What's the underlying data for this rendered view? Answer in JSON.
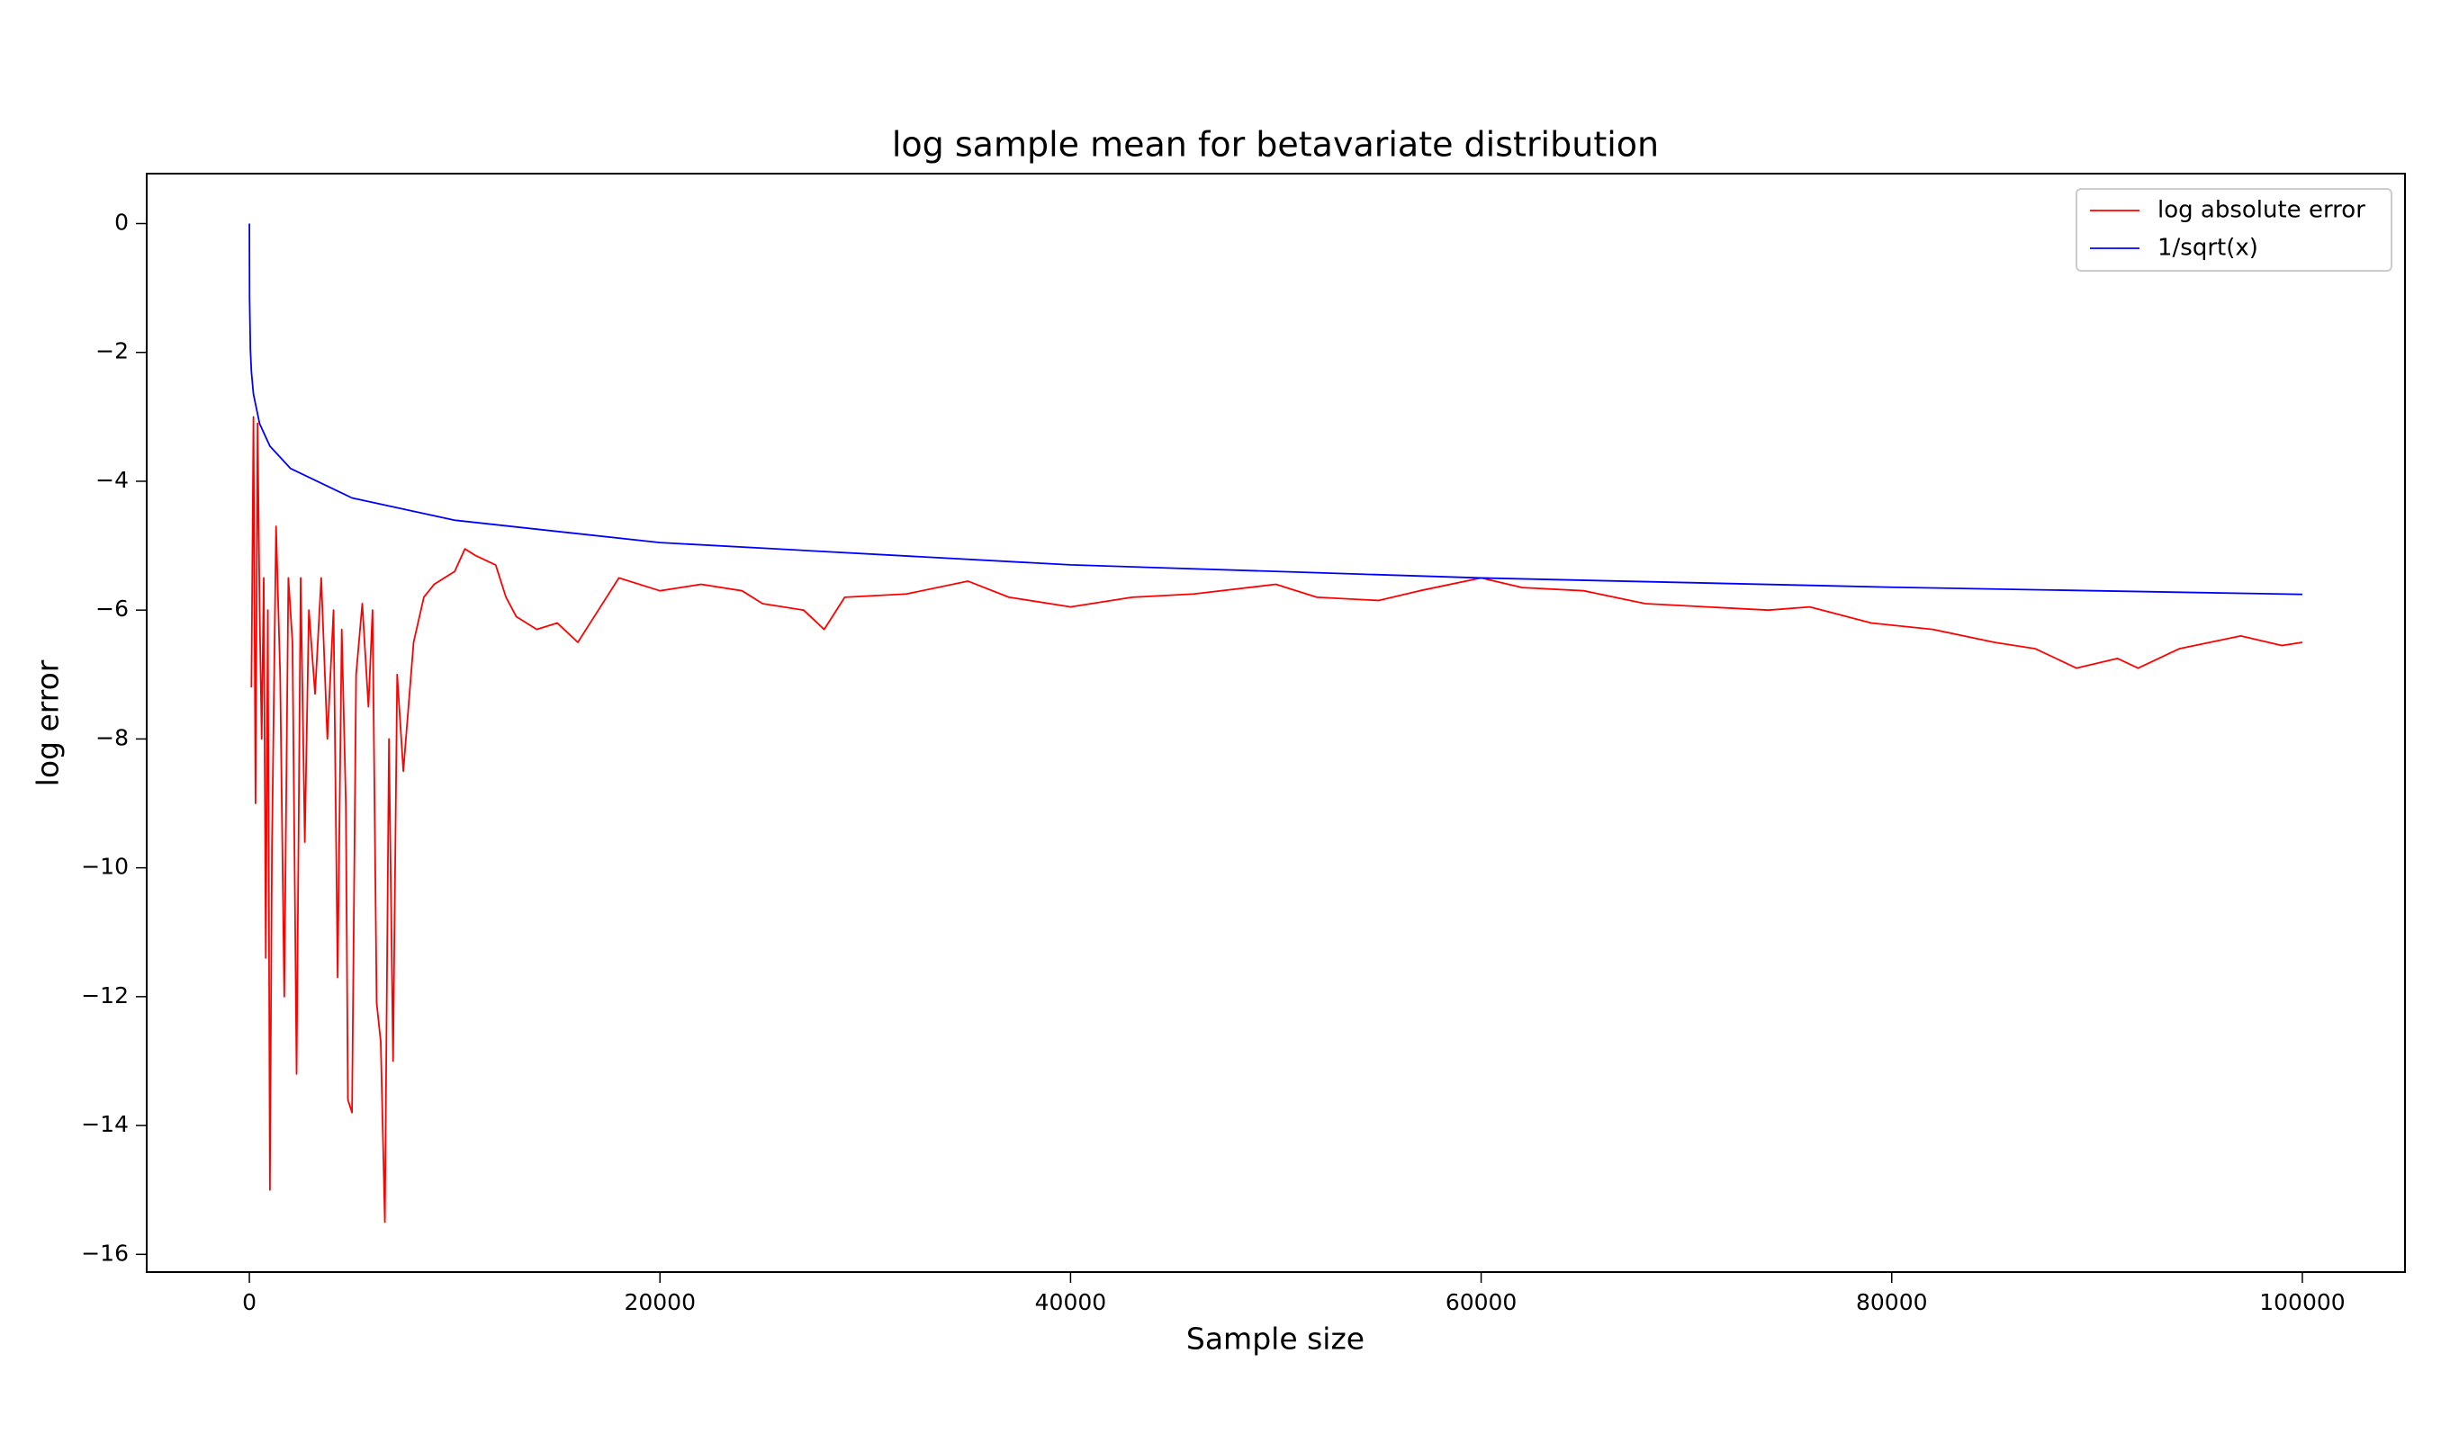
{
  "chart_data": {
    "type": "line",
    "title": "log sample mean for betavariate distribution",
    "x_label": "Sample size",
    "y_label": "log error",
    "xlim": [
      -5000,
      105000
    ],
    "ylim": [
      -16.275,
      0.775
    ],
    "xticks": [
      0,
      20000,
      40000,
      60000,
      80000,
      100000
    ],
    "yticks": [
      0,
      {
        "value": -2,
        "label": "−2"
      },
      {
        "value": -4,
        "label": "−4"
      },
      {
        "value": -6,
        "label": "−6"
      },
      {
        "value": -8,
        "label": "−8"
      },
      {
        "value": -10,
        "label": "−10"
      },
      {
        "value": -12,
        "label": "−12"
      },
      {
        "value": -14,
        "label": "−14"
      },
      {
        "value": -16,
        "label": "−16"
      }
    ],
    "grid": false,
    "legend": "upper right",
    "series": [
      {
        "name": "log absolute error",
        "color": "#ff0000",
        "x": [
          100,
          200,
          300,
          400,
          500,
          600,
          700,
          800,
          900,
          1000,
          1100,
          1300,
          1500,
          1700,
          1900,
          2100,
          2300,
          2500,
          2700,
          2900,
          3200,
          3500,
          3800,
          4100,
          4300,
          4500,
          4700,
          4800,
          5000,
          5200,
          5500,
          5800,
          6000,
          6200,
          6400,
          6600,
          6800,
          7000,
          7200,
          7500,
          8000,
          8500,
          9000,
          10000,
          10500,
          11000,
          12000,
          12500,
          13000,
          14000,
          15000,
          16000,
          17000,
          18000,
          20000,
          22000,
          24000,
          25000,
          27000,
          28000,
          29000,
          32000,
          35000,
          37000,
          40000,
          43000,
          46000,
          50000,
          52000,
          55000,
          57000,
          60000,
          62000,
          65000,
          68000,
          71000,
          74000,
          76000,
          79000,
          82000,
          85000,
          87000,
          89000,
          91000,
          92000,
          94000,
          97000,
          99000,
          100000
        ],
        "values": [
          -7.2,
          -3.0,
          -9.0,
          -3.1,
          -6,
          -8,
          -5.5,
          -11.4,
          -6,
          -15,
          -9.7,
          -4.7,
          -7,
          -12,
          -5.5,
          -6.5,
          -13.2,
          -5.5,
          -9.6,
          -6,
          -7.3,
          -5.5,
          -8,
          -6,
          -11.7,
          -6.3,
          -9,
          -13.6,
          -13.8,
          -7,
          -5.9,
          -7.5,
          -6,
          -12.1,
          -12.7,
          -15.5,
          -8,
          -13,
          -7,
          -8.5,
          -6.5,
          -5.8,
          -5.6,
          -5.4,
          -5.05,
          -5.15,
          -5.3,
          -5.8,
          -6.1,
          -6.3,
          -6.2,
          -6.5,
          -6.0,
          -5.5,
          -5.7,
          -5.6,
          -5.7,
          -5.9,
          -6.0,
          -6.3,
          -5.8,
          -5.75,
          -5.55,
          -5.8,
          -5.95,
          -5.8,
          -5.75,
          -5.6,
          -5.8,
          -5.85,
          -5.7,
          -5.5,
          -5.65,
          -5.7,
          -5.9,
          -5.95,
          -6.0,
          -5.95,
          -6.2,
          -6.3,
          -6.5,
          -6.6,
          -6.9,
          -6.75,
          -6.9,
          -6.6,
          -6.4,
          -6.55,
          -6.5
        ]
      },
      {
        "name": "1/sqrt(x)",
        "color": "#0000ff",
        "x": [
          1,
          10,
          50,
          100,
          200,
          500,
          1000,
          2000,
          5000,
          10000,
          20000,
          40000,
          60000,
          80000,
          100000
        ],
        "values": [
          0,
          -1.151,
          -1.956,
          -2.303,
          -2.649,
          -3.107,
          -3.454,
          -3.8,
          -4.259,
          -4.605,
          -4.952,
          -5.298,
          -5.501,
          -5.645,
          -5.756
        ]
      }
    ]
  }
}
